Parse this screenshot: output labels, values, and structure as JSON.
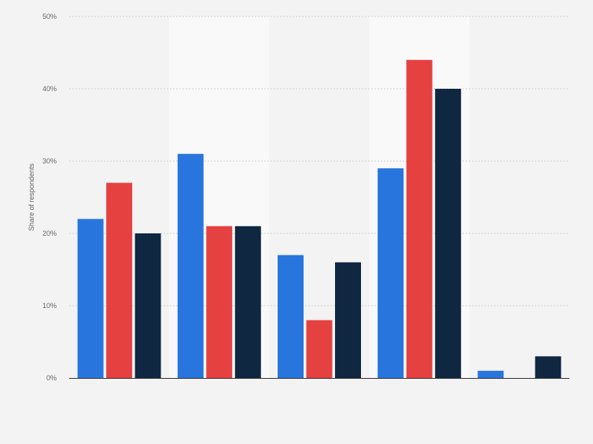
{
  "chart_data": {
    "type": "bar",
    "title": "",
    "xlabel": "",
    "ylabel": "Share of respondents",
    "categories": [
      "",
      "",
      "",
      "",
      ""
    ],
    "series": [
      {
        "values": [
          22,
          31,
          17,
          29,
          1
        ]
      },
      {
        "values": [
          27,
          21,
          8,
          44,
          0
        ]
      },
      {
        "values": [
          20,
          21,
          16,
          40,
          3
        ]
      }
    ],
    "ylim": [
      0,
      50
    ],
    "yticks": [
      "0%",
      "10%",
      "20%",
      "30%",
      "40%",
      "50%"
    ],
    "grid": true,
    "legend": "none"
  },
  "colors": {
    "series": [
      "#2876dd",
      "#e54141",
      "#0f2741"
    ],
    "background": "#f3f3f3",
    "band": "#f9f9f9",
    "grid": "#d0d0d0",
    "axis": "#333333"
  }
}
